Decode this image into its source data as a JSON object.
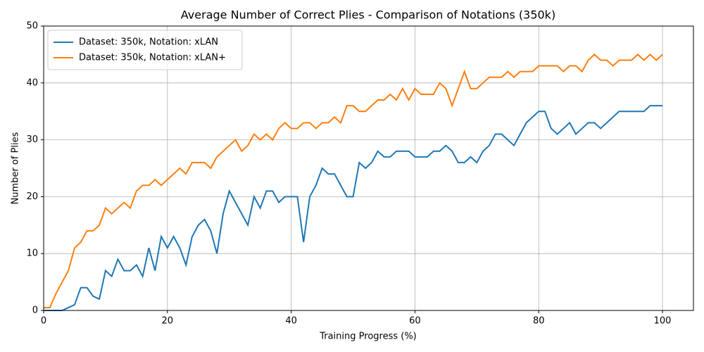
{
  "chart_data": {
    "type": "line",
    "title": "Average Number of Correct Plies - Comparison of Notations (350k)",
    "xlabel": "Training Progress (%)",
    "ylabel": "Number of Plies",
    "x": [
      0,
      1,
      2,
      3,
      4,
      5,
      6,
      7,
      8,
      9,
      10,
      11,
      12,
      13,
      14,
      15,
      16,
      17,
      18,
      19,
      20,
      21,
      22,
      23,
      24,
      25,
      26,
      27,
      28,
      29,
      30,
      31,
      32,
      33,
      34,
      35,
      36,
      37,
      38,
      39,
      40,
      41,
      42,
      43,
      44,
      45,
      46,
      47,
      48,
      49,
      50,
      51,
      52,
      53,
      54,
      55,
      56,
      57,
      58,
      59,
      60,
      61,
      62,
      63,
      64,
      65,
      66,
      67,
      68,
      69,
      70,
      71,
      72,
      73,
      74,
      75,
      76,
      77,
      78,
      79,
      80,
      81,
      82,
      83,
      84,
      85,
      86,
      87,
      88,
      89,
      90,
      91,
      92,
      93,
      94,
      95,
      96,
      97,
      98,
      99,
      100
    ],
    "series": [
      {
        "name": "Dataset: 350k, Notation: xLAN",
        "color": "#1f77b4",
        "values": [
          0,
          0,
          0,
          0,
          0.5,
          1,
          4,
          4,
          2.5,
          2,
          7,
          6,
          9,
          7,
          7,
          8,
          6,
          11,
          7,
          13,
          11,
          13,
          11,
          8,
          13,
          15,
          16,
          14,
          10,
          17,
          21,
          19,
          17,
          15,
          20,
          18,
          21,
          21,
          19,
          20,
          20,
          20,
          12,
          20,
          22,
          25,
          24,
          24,
          22,
          20,
          20,
          26,
          25,
          26,
          28,
          27,
          27,
          28,
          28,
          28,
          27,
          27,
          27,
          28,
          28,
          29,
          28,
          26,
          26,
          27,
          26,
          28,
          29,
          31,
          31,
          30,
          29,
          31,
          33,
          34,
          35,
          35,
          32,
          31,
          32,
          33,
          31,
          32,
          33,
          33,
          32,
          33,
          34,
          35,
          35,
          35,
          35,
          35,
          36,
          36,
          36
        ]
      },
      {
        "name": "Dataset: 350k, Notation: xLAN+",
        "color": "#ff7f0e",
        "values": [
          0.5,
          0.5,
          3,
          5,
          7,
          11,
          12,
          14,
          14,
          15,
          18,
          17,
          18,
          19,
          18,
          21,
          22,
          22,
          23,
          22,
          23,
          24,
          25,
          24,
          26,
          26,
          26,
          25,
          27,
          28,
          29,
          30,
          28,
          29,
          31,
          30,
          31,
          30,
          32,
          33,
          32,
          32,
          33,
          33,
          32,
          33,
          33,
          34,
          33,
          36,
          36,
          35,
          35,
          36,
          37,
          37,
          38,
          37,
          39,
          37,
          39,
          38,
          38,
          38,
          40,
          39,
          36,
          39,
          42,
          39,
          39,
          40,
          41,
          41,
          41,
          42,
          41,
          42,
          42,
          42,
          43,
          43,
          43,
          43,
          42,
          43,
          43,
          42,
          44,
          45,
          44,
          44,
          43,
          44,
          44,
          44,
          45,
          44,
          45,
          44,
          45
        ]
      }
    ],
    "xlim": [
      0,
      105
    ],
    "xticks": [
      0,
      20,
      40,
      60,
      80,
      100
    ],
    "ylim": [
      0,
      50
    ],
    "yticks": [
      0,
      10,
      20,
      30,
      40,
      50
    ],
    "grid": true,
    "legend": "upper-left"
  }
}
